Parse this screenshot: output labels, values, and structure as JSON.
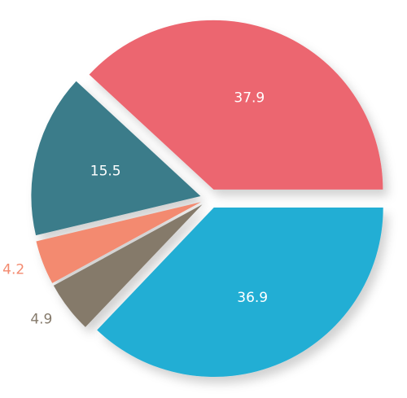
{
  "chart_data": {
    "type": "pie",
    "values": [
      37.9,
      15.5,
      4.2,
      4.9,
      36.9
    ],
    "colors": [
      "#ec6670",
      "#3b7b8a",
      "#f38a6f",
      "#857a6b",
      "#22aed4"
    ]
  }
}
